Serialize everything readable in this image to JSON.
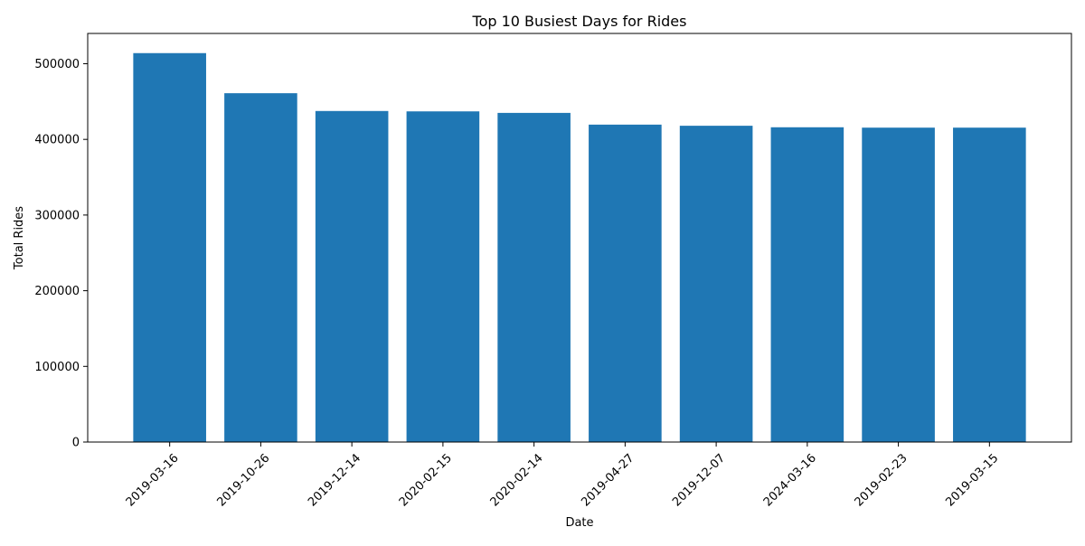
{
  "chart_data": {
    "type": "bar",
    "title": "Top 10 Busiest Days for Rides",
    "xlabel": "Date",
    "ylabel": "Total Rides",
    "categories": [
      "2019-03-16",
      "2019-10-26",
      "2019-12-14",
      "2020-02-15",
      "2020-02-14",
      "2019-04-27",
      "2019-12-07",
      "2024-03-16",
      "2019-02-23",
      "2019-03-15"
    ],
    "values": [
      514000,
      461000,
      437500,
      437000,
      435000,
      419500,
      418000,
      416000,
      415500,
      415500
    ],
    "ylim": [
      0,
      540000
    ],
    "yticks": [
      0,
      100000,
      200000,
      300000,
      400000,
      500000
    ],
    "ytick_labels": [
      "0",
      "100000",
      "200000",
      "300000",
      "400000",
      "500000"
    ],
    "bar_color": "#1f77b4",
    "grid": false,
    "legend": "none"
  }
}
